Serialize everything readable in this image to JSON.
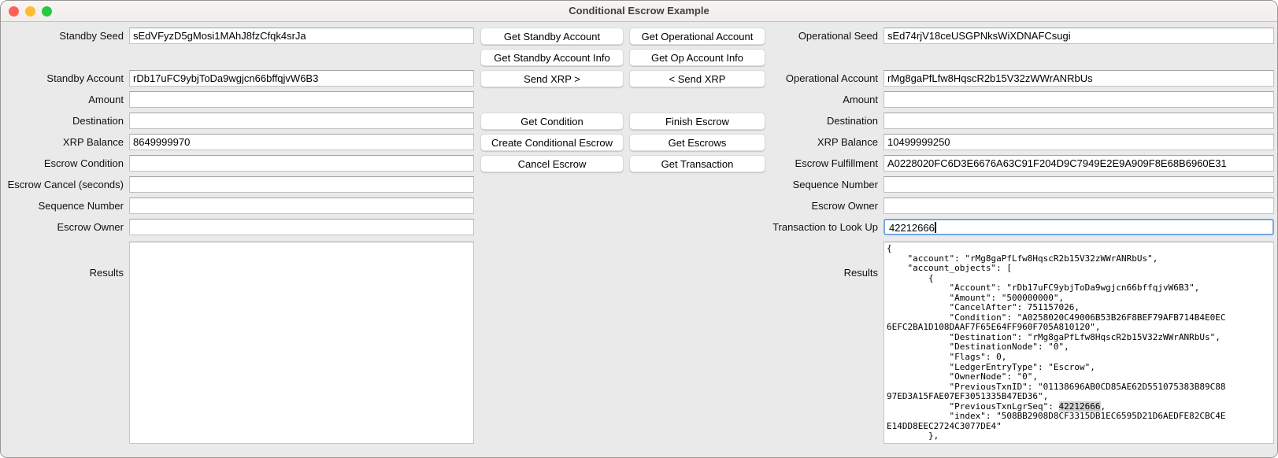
{
  "window": {
    "title": "Conditional Escrow Example"
  },
  "traffic_lights": {
    "close": "#ff5f57",
    "minimize": "#febc2e",
    "zoom": "#28c840"
  },
  "colors": {
    "focus_ring": "#72a8e3",
    "highlight": "#d2d1d0",
    "background": "#eaeaea"
  },
  "left": {
    "results_label": "Results",
    "results_text": "",
    "fields": [
      {
        "name": "standby-seed",
        "row": 1,
        "label": "Standby Seed",
        "value": "sEdVFyzD5gMosi1MAhJ8fzCfqk4srJa"
      },
      {
        "name": "standby-account",
        "row": 3,
        "label": "Standby Account",
        "value": "rDb17uFC9ybjToDa9wgjcn66bffqjvW6B3"
      },
      {
        "name": "standby-amount",
        "row": 4,
        "label": "Amount",
        "value": ""
      },
      {
        "name": "standby-destination",
        "row": 5,
        "label": "Destination",
        "value": ""
      },
      {
        "name": "standby-xrp-balance",
        "row": 6,
        "label": "XRP Balance",
        "value": "8649999970"
      },
      {
        "name": "escrow-condition",
        "row": 7,
        "label": "Escrow Condition",
        "value": ""
      },
      {
        "name": "escrow-cancel-seconds",
        "row": 8,
        "label": "Escrow Cancel (seconds)",
        "value": ""
      },
      {
        "name": "standby-sequence-number",
        "row": 9,
        "label": "Sequence Number",
        "value": ""
      },
      {
        "name": "standby-escrow-owner",
        "row": 10,
        "label": "Escrow Owner",
        "value": ""
      }
    ]
  },
  "buttons": [
    {
      "name": "get-standby-account-button",
      "col": 1,
      "row": 1,
      "label": "Get Standby Account"
    },
    {
      "name": "get-operational-account-button",
      "col": 2,
      "row": 1,
      "label": "Get Operational Account"
    },
    {
      "name": "get-standby-account-info-button",
      "col": 1,
      "row": 2,
      "label": "Get Standby Account Info"
    },
    {
      "name": "get-op-account-info-button",
      "col": 2,
      "row": 2,
      "label": "Get Op Account Info"
    },
    {
      "name": "send-xrp-right-button",
      "col": 1,
      "row": 3,
      "label": "Send XRP >"
    },
    {
      "name": "send-xrp-left-button",
      "col": 2,
      "row": 3,
      "label": "< Send XRP"
    },
    {
      "name": "get-condition-button",
      "col": 1,
      "row": 5,
      "label": "Get Condition"
    },
    {
      "name": "finish-escrow-button",
      "col": 2,
      "row": 5,
      "label": "Finish Escrow"
    },
    {
      "name": "create-conditional-escrow-button",
      "col": 1,
      "row": 6,
      "label": "Create Conditional Escrow"
    },
    {
      "name": "get-escrows-button",
      "col": 2,
      "row": 6,
      "label": "Get Escrows"
    },
    {
      "name": "cancel-escrow-button",
      "col": 1,
      "row": 7,
      "label": "Cancel Escrow"
    },
    {
      "name": "get-transaction-button",
      "col": 2,
      "row": 7,
      "label": "Get Transaction"
    }
  ],
  "right": {
    "results_label": "Results",
    "highlight_text": "42212666",
    "fields": [
      {
        "name": "operational-seed",
        "row": 1,
        "label": "Operational Seed",
        "value": "sEd74rjV18ceUSGPNksWiXDNAFCsugi"
      },
      {
        "name": "operational-account",
        "row": 3,
        "label": "Operational Account",
        "value": "rMg8gaPfLfw8HqscR2b15V32zWWrANRbUs"
      },
      {
        "name": "operational-amount",
        "row": 4,
        "label": "Amount",
        "value": ""
      },
      {
        "name": "operational-destination",
        "row": 5,
        "label": "Destination",
        "value": ""
      },
      {
        "name": "operational-xrp-balance",
        "row": 6,
        "label": "XRP Balance",
        "value": "10499999250"
      },
      {
        "name": "escrow-fulfillment",
        "row": 7,
        "label": "Escrow Fulfillment",
        "value": "A0228020FC6D3E6676A63C91F204D9C7949E2E9A909F8E68B6960E31"
      },
      {
        "name": "operational-sequence-number",
        "row": 8,
        "label": "Sequence Number",
        "value": ""
      },
      {
        "name": "operational-escrow-owner",
        "row": 9,
        "label": "Escrow Owner",
        "value": ""
      },
      {
        "name": "transaction-to-look-up",
        "row": 10,
        "label": "Transaction to Look Up",
        "value": "42212666",
        "focused": true
      }
    ],
    "results_lines": [
      "{",
      "    \"account\": \"rMg8gaPfLfw8HqscR2b15V32zWWrANRbUs\",",
      "    \"account_objects\": [",
      "        {",
      "            \"Account\": \"rDb17uFC9ybjToDa9wgjcn66bffqjvW6B3\",",
      "            \"Amount\": \"500000000\",",
      "            \"CancelAfter\": 751157026,",
      "            \"Condition\": \"A0258020C49006B53B26F8BEF79AFB714B4E0EC",
      "6EFC2BA1D108DAAF7F65E64FF960F705A810120\",",
      "            \"Destination\": \"rMg8gaPfLfw8HqscR2b15V32zWWrANRbUs\",",
      "            \"DestinationNode\": \"0\",",
      "            \"Flags\": 0,",
      "            \"LedgerEntryType\": \"Escrow\",",
      "            \"OwnerNode\": \"0\",",
      "            \"PreviousTxnID\": \"01138696AB0CD85AE62D551075383B89C88",
      "97ED3A15FAE07EF3051335B47ED36\",",
      "            \"PreviousTxnLgrSeq\": 42212666,",
      "            \"index\": \"508BB2908D8CF3315DB1EC6595D21D6AEDFE82CBC4E",
      "E14DD8EEC2724C3077DE4\"",
      "        },"
    ]
  }
}
